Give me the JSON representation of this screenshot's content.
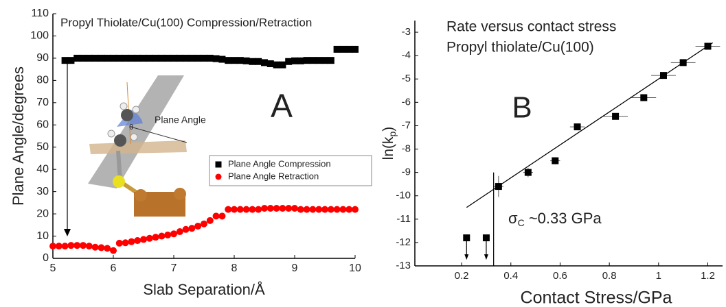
{
  "chart_data": [
    {
      "type": "scatter",
      "title": "Propyl Thiolate/Cu(100) Compression/Retraction",
      "panel_label": "A",
      "x_label": "Slab Separation/Å",
      "y_label": "Plane Angle/degrees",
      "inset_labels": [
        "Plane Angle",
        "θ"
      ],
      "xlim": [
        5,
        10
      ],
      "xticks": [
        5,
        6,
        7,
        8,
        9,
        10
      ],
      "ylim": [
        0,
        110
      ],
      "yticks": [
        0,
        10,
        20,
        30,
        40,
        50,
        60,
        70,
        80,
        90,
        100,
        110
      ],
      "legend": "right",
      "series": [
        {
          "name": "Plane Angle Compression",
          "color": "#000000",
          "marker": "square",
          "x": [
            5.2,
            5.3,
            5.4,
            5.5,
            5.6,
            5.7,
            5.8,
            5.9,
            6.0,
            6.1,
            6.2,
            6.3,
            6.4,
            6.5,
            6.6,
            6.7,
            6.8,
            6.9,
            7.0,
            7.1,
            7.2,
            7.3,
            7.4,
            7.5,
            7.6,
            7.7,
            7.8,
            7.9,
            8.0,
            8.1,
            8.2,
            8.3,
            8.4,
            8.5,
            8.6,
            8.7,
            8.8,
            8.9,
            9.0,
            9.1,
            9.2,
            9.3,
            9.4,
            9.5,
            9.6,
            9.7,
            9.8,
            9.9,
            10.0
          ],
          "values": [
            89,
            89,
            90,
            90,
            90,
            90,
            90,
            90,
            90,
            90,
            90,
            90,
            90,
            90,
            90,
            90,
            90,
            90,
            90,
            90,
            90,
            90,
            90,
            90,
            90,
            89.8,
            89.5,
            89,
            89,
            89,
            88.8,
            88.5,
            88.5,
            88,
            87.5,
            87,
            87,
            88.5,
            88.8,
            88.8,
            89,
            89,
            89,
            89,
            89,
            94,
            94,
            94,
            94
          ]
        },
        {
          "name": "Plane Angle Retraction",
          "color": "#ff0000",
          "marker": "circle",
          "x": [
            5.0,
            5.1,
            5.2,
            5.3,
            5.4,
            5.5,
            5.6,
            5.7,
            5.8,
            5.9,
            6.0,
            6.1,
            6.2,
            6.3,
            6.4,
            6.5,
            6.6,
            6.7,
            6.8,
            6.9,
            7.0,
            7.1,
            7.2,
            7.3,
            7.4,
            7.5,
            7.6,
            7.7,
            7.8,
            7.9,
            8.0,
            8.1,
            8.2,
            8.3,
            8.4,
            8.5,
            8.6,
            8.7,
            8.8,
            8.9,
            9.0,
            9.1,
            9.2,
            9.3,
            9.4,
            9.5,
            9.6,
            9.7,
            9.8,
            9.9,
            10.0
          ],
          "values": [
            5.5,
            5.5,
            5.5,
            5.8,
            5.8,
            5.8,
            5.5,
            5,
            4.8,
            4.5,
            3.5,
            6.8,
            7,
            7.5,
            8,
            8.5,
            9,
            9.5,
            10,
            10.5,
            11,
            12,
            13,
            13.5,
            14.5,
            15.5,
            17,
            19,
            19,
            22,
            22,
            22,
            22,
            22,
            22,
            22.5,
            22.5,
            22.5,
            22.5,
            22.5,
            22.5,
            22,
            22,
            22,
            22,
            22,
            22,
            22,
            22,
            22,
            22
          ]
        }
      ]
    },
    {
      "type": "scatter",
      "title_lines": [
        "Rate versus contact stress",
        "Propyl thiolate/Cu(100)"
      ],
      "panel_label": "B",
      "x_label": "Contact Stress/GPa",
      "y_label": {
        "text": "ln(k",
        "subscript": "p",
        "suffix": ")"
      },
      "annotation": {
        "symbol": "σ",
        "subscript": "C",
        "text": " ~0.33 GPa"
      },
      "threshold": 0.33,
      "xlim": [
        0.01,
        1.26
      ],
      "xticks": [
        0.2,
        0.4,
        0.6,
        0.8,
        1.0,
        1.2
      ],
      "ylim": [
        -13,
        -2.5
      ],
      "yticks": [
        -13,
        -12,
        -11,
        -10,
        -9,
        -8,
        -7,
        -6,
        -5,
        -4,
        -3
      ],
      "series": [
        {
          "color": "#000000",
          "marker": "square",
          "x": [
            0.22,
            0.3,
            0.35,
            0.47,
            0.58,
            0.67,
            0.825,
            0.94,
            1.02,
            1.1,
            1.2
          ],
          "values": [
            -11.8,
            -11.8,
            -9.6,
            -9.0,
            -8.5,
            -7.05,
            -6.6,
            -5.8,
            -4.85,
            -4.3,
            -3.6
          ],
          "xerr": [
            null,
            null,
            0.02,
            0.02,
            0.02,
            0.03,
            0.05,
            0.05,
            0.05,
            0.05,
            0.05
          ],
          "yerr": [
            null,
            null,
            0.45,
            0.2,
            0.15,
            0.1,
            0.1,
            0.1,
            0.1,
            0.1,
            0.1
          ],
          "upper_limit": [
            true,
            true,
            false,
            false,
            false,
            false,
            false,
            false,
            false,
            false,
            false
          ]
        }
      ],
      "fit": {
        "x": [
          0.22,
          1.22
        ],
        "values": [
          -10.5,
          -3.45
        ]
      }
    }
  ]
}
